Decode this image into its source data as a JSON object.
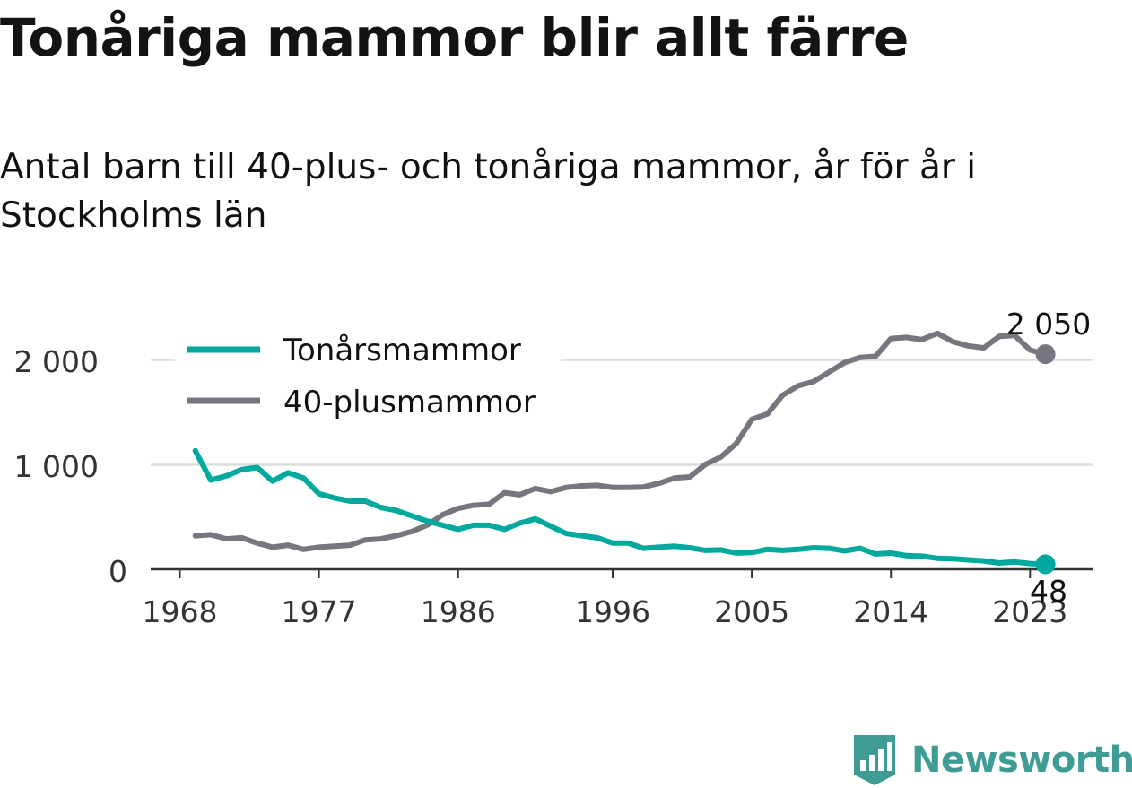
{
  "title": "Tonåriga mammor blir allt färre",
  "subtitle": "Antal barn till 40-plus- och tonåriga mammor, år för år i Stockholms län",
  "brand": {
    "name": "Newsworthy",
    "icon": "newsworthy-logo-icon",
    "color": "#3f9c95"
  },
  "chart_data": {
    "type": "line",
    "x": [
      1969,
      1970,
      1971,
      1972,
      1973,
      1974,
      1975,
      1976,
      1977,
      1978,
      1979,
      1980,
      1981,
      1982,
      1983,
      1984,
      1985,
      1986,
      1987,
      1988,
      1989,
      1990,
      1991,
      1992,
      1993,
      1994,
      1995,
      1996,
      1997,
      1998,
      1999,
      2000,
      2001,
      2002,
      2003,
      2004,
      2005,
      2006,
      2007,
      2008,
      2009,
      2010,
      2011,
      2012,
      2013,
      2014,
      2015,
      2016,
      2017,
      2018,
      2019,
      2020,
      2021,
      2022,
      2023,
      2024
    ],
    "series": [
      {
        "name": "Tonårsmammor",
        "color": "#00a99d",
        "values": [
          1130,
          850,
          890,
          950,
          970,
          840,
          920,
          870,
          720,
          680,
          650,
          650,
          590,
          560,
          510,
          460,
          420,
          380,
          420,
          420,
          380,
          440,
          480,
          410,
          340,
          320,
          300,
          250,
          250,
          200,
          210,
          220,
          205,
          180,
          185,
          155,
          160,
          190,
          180,
          190,
          205,
          200,
          175,
          200,
          145,
          155,
          130,
          125,
          105,
          100,
          90,
          80,
          60,
          70,
          55,
          48
        ]
      },
      {
        "name": "40-plusmammor",
        "color": "#76767e",
        "values": [
          320,
          330,
          290,
          300,
          250,
          210,
          230,
          190,
          210,
          220,
          230,
          280,
          290,
          320,
          360,
          420,
          520,
          580,
          610,
          620,
          730,
          710,
          770,
          740,
          780,
          795,
          800,
          780,
          780,
          785,
          820,
          870,
          880,
          1000,
          1070,
          1200,
          1430,
          1480,
          1660,
          1750,
          1790,
          1880,
          1970,
          2020,
          2030,
          2200,
          2210,
          2190,
          2250,
          2170,
          2130,
          2110,
          2220,
          2230,
          2090,
          2050
        ]
      }
    ],
    "end_labels": [
      "48",
      "2 050"
    ],
    "xticks": [
      "1968",
      "1977",
      "1986",
      "1996",
      "2005",
      "2014",
      "2023"
    ],
    "yticks": [
      "0",
      "1 000",
      "2 000"
    ],
    "ylim": [
      0,
      2250
    ],
    "legend": "top-left"
  }
}
